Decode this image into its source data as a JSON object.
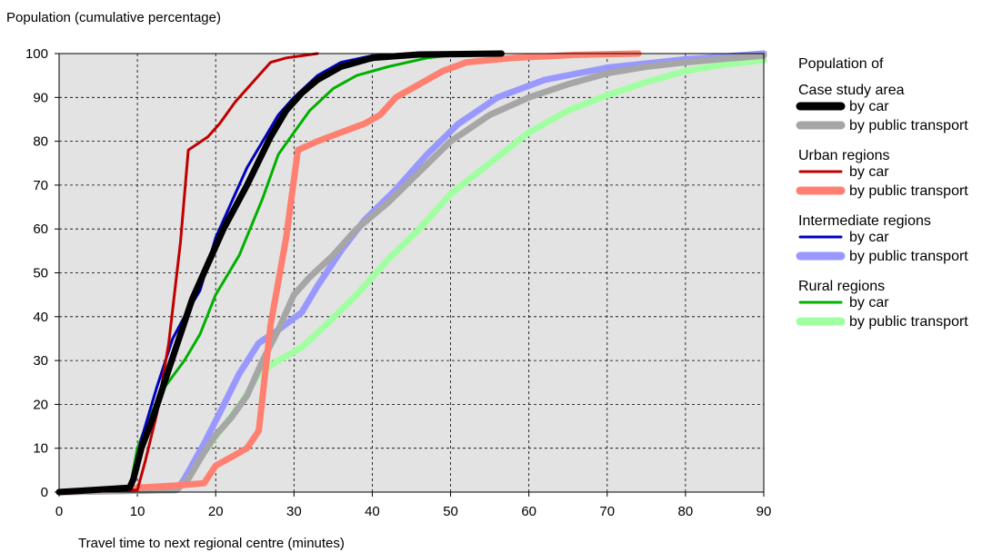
{
  "chart_data": {
    "type": "line",
    "ylabel": "Population (cumulative percentage)",
    "xlabel": "Travel time to next regional centre (minutes)",
    "xlim": [
      0,
      90
    ],
    "ylim": [
      0,
      100
    ],
    "xticks": [
      0,
      10,
      20,
      30,
      40,
      50,
      60,
      70,
      80,
      90
    ],
    "yticks": [
      0,
      10,
      20,
      30,
      40,
      50,
      60,
      70,
      80,
      90,
      100
    ],
    "grid": true,
    "plot_background": "#e3e3e3",
    "legend_position": "right",
    "legend": {
      "title": "Population of",
      "groups": [
        {
          "label": "Case study area",
          "series": [
            0,
            1
          ]
        },
        {
          "label": "Urban regions",
          "series": [
            2,
            3
          ]
        },
        {
          "label": "Intermediate regions",
          "series": [
            4,
            5
          ]
        },
        {
          "label": "Rural regions",
          "series": [
            6,
            7
          ]
        }
      ]
    },
    "series": [
      {
        "group": "Case study area",
        "name": "by car",
        "color": "#000000",
        "style": "thick",
        "points": [
          [
            0,
            0
          ],
          [
            9,
            1
          ],
          [
            9.5,
            3
          ],
          [
            10.5,
            10
          ],
          [
            12,
            17
          ],
          [
            14,
            28
          ],
          [
            15.5,
            36
          ],
          [
            17,
            44
          ],
          [
            19,
            52
          ],
          [
            21,
            60
          ],
          [
            24,
            70
          ],
          [
            27,
            81
          ],
          [
            29,
            87
          ],
          [
            31,
            91
          ],
          [
            33,
            94
          ],
          [
            36,
            97
          ],
          [
            40,
            99
          ],
          [
            46,
            99.8
          ],
          [
            56.5,
            100
          ]
        ]
      },
      {
        "group": "Case study area",
        "name": "by public transport",
        "color": "#a6a6a6",
        "style": "thick",
        "points": [
          [
            0,
            0
          ],
          [
            15,
            0.5
          ],
          [
            16.5,
            3
          ],
          [
            18.5,
            9
          ],
          [
            20,
            13
          ],
          [
            22,
            17
          ],
          [
            24,
            22
          ],
          [
            26,
            30
          ],
          [
            28,
            37
          ],
          [
            30,
            45
          ],
          [
            32,
            49
          ],
          [
            35,
            54
          ],
          [
            38,
            60
          ],
          [
            42,
            66
          ],
          [
            46,
            73
          ],
          [
            50,
            80
          ],
          [
            55,
            86
          ],
          [
            60,
            90
          ],
          [
            65,
            93
          ],
          [
            70,
            95.5
          ],
          [
            75,
            97
          ],
          [
            80,
            98
          ],
          [
            85,
            98.8
          ],
          [
            90,
            99.5
          ]
        ]
      },
      {
        "group": "Urban regions",
        "name": "by car",
        "color": "#c00000",
        "style": "thin",
        "points": [
          [
            0,
            0
          ],
          [
            10,
            0.5
          ],
          [
            11,
            7
          ],
          [
            12.5,
            18
          ],
          [
            14,
            34
          ],
          [
            15.5,
            57
          ],
          [
            16.5,
            78
          ],
          [
            19,
            81
          ],
          [
            20.5,
            84
          ],
          [
            22.5,
            89
          ],
          [
            25,
            94
          ],
          [
            27,
            98
          ],
          [
            29,
            99
          ],
          [
            33,
            100
          ]
        ]
      },
      {
        "group": "Urban regions",
        "name": "by public transport",
        "color": "#ff8070",
        "style": "thick",
        "points": [
          [
            0,
            0
          ],
          [
            10,
            1
          ],
          [
            15,
            1.5
          ],
          [
            18.5,
            2
          ],
          [
            20,
            6
          ],
          [
            22,
            8
          ],
          [
            24,
            10
          ],
          [
            25.5,
            14
          ],
          [
            27,
            38
          ],
          [
            29,
            58
          ],
          [
            30.5,
            78
          ],
          [
            33,
            80
          ],
          [
            36,
            82
          ],
          [
            39,
            84
          ],
          [
            41,
            86
          ],
          [
            43,
            90
          ],
          [
            46,
            93
          ],
          [
            49,
            96
          ],
          [
            52,
            98
          ],
          [
            58,
            99
          ],
          [
            66,
            99.7
          ],
          [
            74,
            100
          ]
        ]
      },
      {
        "group": "Intermediate regions",
        "name": "by car",
        "color": "#0000c0",
        "style": "thin",
        "points": [
          [
            0,
            0
          ],
          [
            9,
            0.5
          ],
          [
            10.5,
            12
          ],
          [
            12.5,
            24
          ],
          [
            14.5,
            35
          ],
          [
            16,
            40
          ],
          [
            18,
            46
          ],
          [
            20,
            58
          ],
          [
            22,
            66
          ],
          [
            24,
            74
          ],
          [
            26,
            80
          ],
          [
            28,
            86
          ],
          [
            30,
            90
          ],
          [
            33,
            95
          ],
          [
            36,
            98
          ],
          [
            40,
            99.5
          ],
          [
            45,
            100
          ]
        ]
      },
      {
        "group": "Intermediate regions",
        "name": "by public transport",
        "color": "#9898ff",
        "style": "thick",
        "points": [
          [
            0,
            0
          ],
          [
            15,
            0.5
          ],
          [
            16,
            3
          ],
          [
            18.5,
            11
          ],
          [
            20.5,
            18
          ],
          [
            23,
            27
          ],
          [
            25.5,
            34
          ],
          [
            28,
            37
          ],
          [
            31,
            41
          ],
          [
            33,
            47
          ],
          [
            36,
            55
          ],
          [
            39,
            62
          ],
          [
            43,
            69
          ],
          [
            47,
            77
          ],
          [
            51,
            84
          ],
          [
            56,
            90
          ],
          [
            62,
            94
          ],
          [
            70,
            96.8
          ],
          [
            80,
            98.7
          ],
          [
            90,
            100
          ]
        ]
      },
      {
        "group": "Rural regions",
        "name": "by car",
        "color": "#00b000",
        "style": "thin",
        "points": [
          [
            0,
            0
          ],
          [
            9,
            0.5
          ],
          [
            10,
            10
          ],
          [
            11.5,
            17
          ],
          [
            13.5,
            24
          ],
          [
            16,
            30
          ],
          [
            18,
            36
          ],
          [
            20,
            45
          ],
          [
            23,
            54
          ],
          [
            26,
            67
          ],
          [
            28,
            77
          ],
          [
            30,
            82
          ],
          [
            32,
            87
          ],
          [
            35,
            92
          ],
          [
            38,
            95
          ],
          [
            42,
            97
          ],
          [
            47,
            99
          ],
          [
            52,
            100
          ]
        ]
      },
      {
        "group": "Rural regions",
        "name": "by public transport",
        "color": "#a0ffa0",
        "style": "thick",
        "points": [
          [
            0,
            0
          ],
          [
            15,
            0.5
          ],
          [
            16.5,
            3
          ],
          [
            18.5,
            9
          ],
          [
            21,
            15
          ],
          [
            23.5,
            21
          ],
          [
            25.5,
            27
          ],
          [
            28,
            30
          ],
          [
            31,
            33
          ],
          [
            34,
            38
          ],
          [
            38,
            45
          ],
          [
            42,
            53
          ],
          [
            46,
            60
          ],
          [
            50,
            68
          ],
          [
            55,
            75
          ],
          [
            60,
            82
          ],
          [
            65,
            87
          ],
          [
            70,
            90.5
          ],
          [
            75,
            93.5
          ],
          [
            80,
            96
          ],
          [
            85,
            97.5
          ],
          [
            90,
            98.5
          ]
        ]
      }
    ]
  }
}
